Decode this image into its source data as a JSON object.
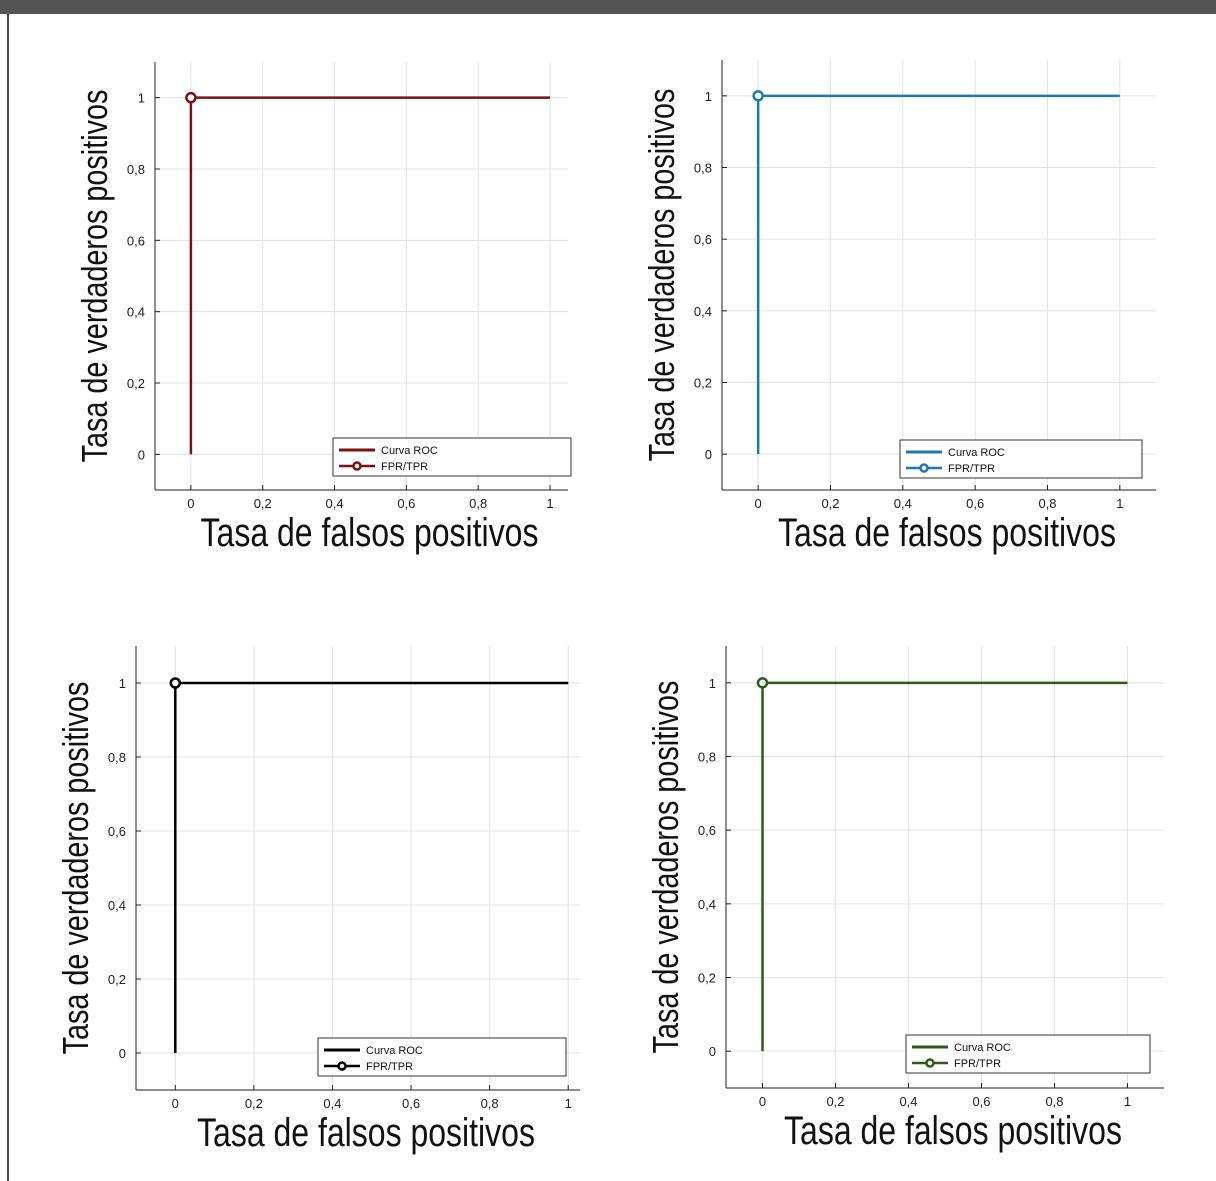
{
  "chart_data": [
    {
      "type": "line",
      "xlabel": "Tasa de falsos positivos",
      "ylabel": "Tasa de verdaderos positivos",
      "xlim": [
        -0.1,
        1.05
      ],
      "ylim": [
        -0.1,
        1.1
      ],
      "xticks": [
        0,
        0.2,
        0.4,
        0.6,
        0.8,
        1
      ],
      "xtick_labels": [
        "0",
        "0,2",
        "0,4",
        "0,6",
        "0,8",
        "1"
      ],
      "yticks": [
        0,
        0.2,
        0.4,
        0.6,
        0.8,
        1
      ],
      "ytick_labels": [
        "0",
        "0,2",
        "0,4",
        "0,6",
        "0,8",
        "1"
      ],
      "grid": true,
      "legend_position": "bottom-right",
      "color": "#7b1113",
      "series": [
        {
          "name": "Curva ROC",
          "x": [
            0,
            0,
            1
          ],
          "y": [
            0,
            1,
            1
          ]
        },
        {
          "name": "FPR/TPR",
          "x": [
            0
          ],
          "y": [
            1
          ],
          "marker": "circle-open"
        }
      ]
    },
    {
      "type": "line",
      "xlabel": "Tasa de falsos positivos",
      "ylabel": "Tasa de verdaderos positivos",
      "xlim": [
        -0.1,
        1.1
      ],
      "ylim": [
        -0.1,
        1.1
      ],
      "xticks": [
        0,
        0.2,
        0.4,
        0.6,
        0.8,
        1
      ],
      "xtick_labels": [
        "0",
        "0,2",
        "0,4",
        "0,6",
        "0,8",
        "1"
      ],
      "yticks": [
        0,
        0.2,
        0.4,
        0.6,
        0.8,
        1
      ],
      "ytick_labels": [
        "0",
        "0,2",
        "0,4",
        "0,6",
        "0,8",
        "1"
      ],
      "grid": true,
      "legend_position": "bottom-right",
      "color": "#1f77b4",
      "series": [
        {
          "name": "Curva ROC",
          "x": [
            0,
            0,
            1
          ],
          "y": [
            0,
            1,
            1
          ]
        },
        {
          "name": "FPR/TPR",
          "x": [
            0
          ],
          "y": [
            1
          ],
          "marker": "circle-open"
        }
      ]
    },
    {
      "type": "line",
      "xlabel": "Tasa de falsos positivos",
      "ylabel": "Tasa de verdaderos positivos",
      "xlim": [
        -0.1,
        1.03
      ],
      "ylim": [
        -0.1,
        1.1
      ],
      "xticks": [
        0,
        0.2,
        0.4,
        0.6,
        0.8,
        1
      ],
      "xtick_labels": [
        "0",
        "0,2",
        "0,4",
        "0,6",
        "0,8",
        "1"
      ],
      "yticks": [
        0,
        0.2,
        0.4,
        0.6,
        0.8,
        1
      ],
      "ytick_labels": [
        "0",
        "0,2",
        "0,4",
        "0,6",
        "0,8",
        "1"
      ],
      "grid": true,
      "legend_position": "bottom-right",
      "color": "#000000",
      "series": [
        {
          "name": "Curva ROC",
          "x": [
            0,
            0,
            1
          ],
          "y": [
            0,
            1,
            1
          ]
        },
        {
          "name": "FPR/TPR",
          "x": [
            0
          ],
          "y": [
            1
          ],
          "marker": "circle-open"
        }
      ]
    },
    {
      "type": "line",
      "xlabel": "Tasa de falsos positivos",
      "ylabel": "Tasa de verdaderos positivos",
      "xlim": [
        -0.1,
        1.1
      ],
      "ylim": [
        -0.1,
        1.1
      ],
      "xticks": [
        0,
        0.2,
        0.4,
        0.6,
        0.8,
        1
      ],
      "xtick_labels": [
        "0",
        "0,2",
        "0,4",
        "0,6",
        "0,8",
        "1"
      ],
      "yticks": [
        0,
        0.2,
        0.4,
        0.6,
        0.8,
        1
      ],
      "ytick_labels": [
        "0",
        "0,2",
        "0,4",
        "0,6",
        "0,8",
        "1"
      ],
      "grid": true,
      "legend_position": "bottom-right",
      "color": "#2e5a1c",
      "series": [
        {
          "name": "Curva ROC",
          "x": [
            0,
            0,
            1
          ],
          "y": [
            0,
            1,
            1
          ]
        },
        {
          "name": "FPR/TPR",
          "x": [
            0
          ],
          "y": [
            1
          ],
          "marker": "circle-open"
        }
      ]
    }
  ]
}
